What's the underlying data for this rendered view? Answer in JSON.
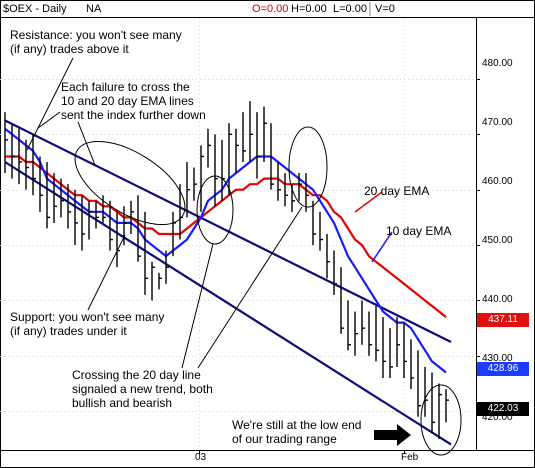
{
  "header": {
    "symbol": "$OEX - Daily",
    "na": "NA",
    "ohlc_o": "O=0.00",
    "ohlc_h": "H=0.00",
    "ohlc_l": "L=0.00",
    "ohlc_v": "V=0"
  },
  "colors": {
    "bars": "#000000",
    "ema10": "#1a1aff",
    "ema20": "#e60000",
    "channel": "#0a0a7a",
    "annotation": "#000000",
    "tag_red": "#e01010",
    "tag_blue": "#1a3cff",
    "tag_black": "#000000"
  },
  "annotations": {
    "resistance": "Resistance: you won't see many\n(if any) trades above it",
    "failure": "Each failure to cross the\n10 and 20 day EMA lines\nsent the index further down",
    "support": "Support: you won't see many\n(if any) trades under it",
    "crossing": "Crossing the 20 day line\nsignaled a new trend, both\nbullish and bearish",
    "lowend": "We're still at the low end\nof our trading range",
    "ema20_label": "20 day EMA",
    "ema10_label": "10 day EMA"
  },
  "price_tags": {
    "red": "437.11",
    "blue": "428.96",
    "black": "422.03"
  },
  "chart_data": {
    "type": "line",
    "ylim": [
      413,
      491
    ],
    "y_ticks": [
      "480.00",
      "470.00",
      "460.00",
      "450.00",
      "440.00",
      "430.00",
      "420.00"
    ],
    "x_labels": [
      "03",
      "Feb"
    ],
    "bars": [
      [
        474,
        463,
        469
      ],
      [
        472,
        462,
        466
      ],
      [
        471,
        461,
        465
      ],
      [
        469,
        460,
        464
      ],
      [
        470,
        459,
        462
      ],
      [
        466,
        456,
        459
      ],
      [
        465,
        453,
        455
      ],
      [
        463,
        454,
        457
      ],
      [
        462,
        455,
        458
      ],
      [
        461,
        453,
        456
      ],
      [
        460,
        450,
        454
      ],
      [
        459,
        449,
        452
      ],
      [
        458,
        451,
        456
      ],
      [
        458,
        453,
        455
      ],
      [
        459,
        454,
        455
      ],
      [
        458,
        449,
        451
      ],
      [
        456,
        446,
        449
      ],
      [
        457,
        450,
        454
      ],
      [
        458,
        452,
        456
      ],
      [
        459,
        447,
        448
      ],
      [
        456,
        441,
        444
      ],
      [
        447,
        440,
        446
      ],
      [
        445,
        442,
        444
      ],
      [
        449,
        443,
        446
      ],
      [
        456,
        448,
        454
      ],
      [
        461,
        451,
        455
      ],
      [
        465,
        455,
        460
      ],
      [
        464,
        458,
        461
      ],
      [
        468,
        456,
        466
      ],
      [
        471,
        464,
        468
      ],
      [
        470,
        457,
        462
      ],
      [
        469,
        458,
        462
      ],
      [
        472,
        459,
        470
      ],
      [
        471,
        463,
        468
      ],
      [
        474,
        465,
        467
      ],
      [
        476,
        465,
        470
      ],
      [
        474,
        462,
        466
      ],
      [
        475,
        465,
        472
      ],
      [
        472,
        460,
        461
      ],
      [
        465,
        458,
        460
      ],
      [
        463,
        457,
        459
      ],
      [
        461,
        456,
        458
      ],
      [
        463,
        458,
        461
      ],
      [
        463,
        456,
        459
      ],
      [
        458,
        450,
        452
      ],
      [
        456,
        449,
        451
      ],
      [
        452,
        444,
        447
      ],
      [
        449,
        441,
        443
      ],
      [
        446,
        434,
        435
      ],
      [
        440,
        431,
        432
      ],
      [
        438,
        430,
        434
      ],
      [
        440,
        432,
        435
      ],
      [
        438,
        430,
        432
      ],
      [
        439,
        429,
        431
      ],
      [
        437,
        426,
        429
      ],
      [
        435,
        426,
        428
      ],
      [
        437,
        428,
        432
      ],
      [
        436,
        426,
        429
      ],
      [
        433,
        424,
        426
      ],
      [
        431,
        419,
        421
      ],
      [
        428,
        419,
        422
      ],
      [
        427,
        416,
        418
      ],
      [
        425,
        415,
        423
      ],
      [
        424,
        418,
        422
      ]
    ],
    "ema10": [
      471,
      470,
      469,
      468,
      467,
      465,
      462,
      461,
      460,
      459,
      458,
      457,
      456,
      456,
      456,
      455,
      454,
      454,
      454,
      453,
      451,
      450,
      449,
      448,
      449,
      450,
      451,
      453,
      455,
      458,
      459,
      460,
      462,
      463,
      464,
      465,
      466,
      466,
      466,
      465,
      464,
      463,
      462,
      461,
      460,
      458,
      456,
      454,
      451,
      448,
      446,
      444,
      442,
      440,
      438,
      437,
      436,
      436,
      435,
      433,
      431,
      429,
      428,
      427
    ],
    "ema20": [
      466,
      466,
      466,
      465,
      465,
      464,
      463,
      462,
      461,
      460,
      459,
      459,
      458,
      458,
      457,
      457,
      456,
      455,
      455,
      454,
      453,
      453,
      452,
      452,
      452,
      452,
      453,
      454,
      455,
      456,
      457,
      458,
      459,
      460,
      460,
      461,
      461,
      462,
      462,
      462,
      461,
      461,
      461,
      460,
      459,
      459,
      458,
      456,
      455,
      453,
      451,
      450,
      448,
      447,
      446,
      445,
      444,
      443,
      442,
      441,
      440,
      439,
      438,
      437
    ],
    "channels": [
      {
        "name": "resistance",
        "from": [
          0,
          472.5
        ],
        "to": [
          63,
          432.5
        ]
      },
      {
        "name": "support",
        "from": [
          0,
          465.0
        ],
        "to": [
          63,
          414.0
        ]
      }
    ]
  }
}
